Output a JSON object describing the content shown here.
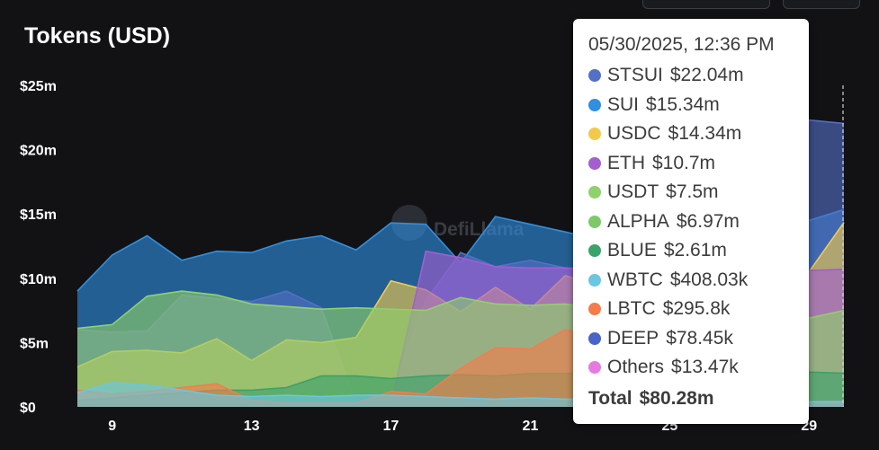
{
  "title": "Tokens (USD)",
  "watermark": "DefiLlama",
  "tooltip": {
    "date": "05/30/2025, 12:36 PM",
    "items": [
      {
        "label": "STSUI",
        "value": "$22.04m",
        "color": "#5470c6"
      },
      {
        "label": "SUI",
        "value": "$15.34m",
        "color": "#2f8fe0"
      },
      {
        "label": "USDC",
        "value": "$14.34m",
        "color": "#f2c94c"
      },
      {
        "label": "ETH",
        "value": "$10.7m",
        "color": "#a35ed0"
      },
      {
        "label": "USDT",
        "value": "$7.5m",
        "color": "#8fd16a"
      },
      {
        "label": "ALPHA",
        "value": "$6.97m",
        "color": "#7ec86a"
      },
      {
        "label": "BLUE",
        "value": "$2.61m",
        "color": "#3aa26b"
      },
      {
        "label": "WBTC",
        "value": "$408.03k",
        "color": "#6cc6e0"
      },
      {
        "label": "LBTC",
        "value": "$295.8k",
        "color": "#f47c4b"
      },
      {
        "label": "DEEP",
        "value": "$78.45k",
        "color": "#4a63c7"
      },
      {
        "label": "Others",
        "value": "$13.47k",
        "color": "#e57be0"
      }
    ],
    "total_label": "Total",
    "total_value": "$80.28m"
  },
  "chart_data": {
    "type": "area",
    "title": "Tokens (USD)",
    "ylim": [
      0,
      25
    ],
    "y_ticks": [
      "$0",
      "$5m",
      "$10m",
      "$15m",
      "$20m",
      "$25m"
    ],
    "y_tick_values": [
      0,
      5,
      10,
      15,
      20,
      25
    ],
    "x_tick_labels": [
      "9",
      "13",
      "17",
      "21",
      "25",
      "29"
    ],
    "x_tick_values": [
      9,
      13,
      17,
      21,
      25,
      29
    ],
    "x": [
      8,
      9,
      10,
      11,
      12,
      13,
      14,
      15,
      16,
      17,
      18,
      19,
      20,
      21,
      22,
      23,
      24,
      25,
      26,
      27,
      28,
      29,
      30
    ],
    "series": [
      {
        "name": "STSUI",
        "color": "#5470c6",
        "values": [
          6.0,
          5.8,
          5.9,
          8.7,
          8.4,
          8.2,
          9.0,
          7.7,
          0.3,
          0.9,
          8.3,
          12.0,
          10.9,
          11.4,
          10.8,
          10.5,
          11.2,
          12.5,
          15.0,
          18.0,
          20.5,
          22.3,
          22.04
        ]
      },
      {
        "name": "SUI",
        "color": "#2f8fe0",
        "values": [
          9.0,
          11.8,
          13.3,
          11.4,
          12.1,
          12.0,
          12.9,
          13.3,
          12.2,
          14.3,
          14.2,
          11.2,
          14.8,
          14.2,
          13.6,
          13.0,
          12.4,
          12.9,
          13.8,
          14.5,
          15.0,
          14.5,
          15.34
        ]
      },
      {
        "name": "USDC",
        "color": "#f2c94c",
        "values": [
          3.1,
          4.3,
          4.4,
          4.2,
          5.3,
          3.6,
          5.2,
          5.0,
          5.4,
          9.8,
          9.1,
          7.4,
          9.3,
          7.6,
          10.2,
          9.4,
          9.8,
          10.3,
          10.5,
          10.0,
          10.2,
          10.5,
          14.34
        ]
      },
      {
        "name": "ETH",
        "color": "#a35ed0",
        "values": [
          0.2,
          0.2,
          0.2,
          0.2,
          0.2,
          0.2,
          0.2,
          0.2,
          0.3,
          0.2,
          12.1,
          11.6,
          10.9,
          10.8,
          10.8,
          10.7,
          10.6,
          10.6,
          10.5,
          10.7,
          10.6,
          10.6,
          10.7
        ]
      },
      {
        "name": "USDT",
        "color": "#8fd16a",
        "values": [
          6.1,
          6.4,
          8.6,
          9.0,
          8.7,
          8.0,
          7.8,
          7.6,
          7.7,
          7.6,
          7.5,
          8.5,
          8.0,
          7.9,
          8.0,
          7.6,
          7.5,
          7.4,
          7.3,
          7.1,
          7.0,
          6.9,
          7.5
        ]
      },
      {
        "name": "BLUE",
        "color": "#3aa26b",
        "values": [
          0.5,
          0.7,
          0.9,
          1.1,
          1.3,
          1.3,
          1.5,
          2.4,
          2.4,
          2.2,
          2.4,
          2.5,
          2.4,
          2.6,
          2.6,
          2.7,
          2.6,
          2.6,
          2.7,
          2.7,
          2.6,
          2.7,
          2.61
        ]
      },
      {
        "name": "LBTC",
        "color": "#f47c4b",
        "values": [
          1.3,
          1.0,
          1.2,
          1.5,
          1.8,
          0.5,
          0.3,
          0.3,
          0.3,
          1.2,
          1.0,
          3.0,
          4.6,
          4.5,
          6.0,
          5.5,
          4.5,
          1.0,
          0.6,
          0.5,
          0.4,
          0.4,
          0.3
        ]
      },
      {
        "name": "WBTC",
        "color": "#6cc6e0",
        "values": [
          1.1,
          1.9,
          1.7,
          1.3,
          0.9,
          0.8,
          0.9,
          0.8,
          0.9,
          0.9,
          0.8,
          0.7,
          0.6,
          0.7,
          0.6,
          0.6,
          0.5,
          0.5,
          0.5,
          0.5,
          0.4,
          0.4,
          0.41
        ]
      }
    ]
  }
}
